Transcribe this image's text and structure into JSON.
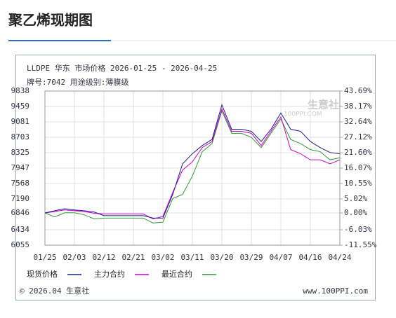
{
  "header": {
    "title": "聚乙烯现期图"
  },
  "chart_data": {
    "type": "line",
    "title": "LLDPE 华东 市场价格 2026-01-25 - 2026-04-25",
    "subtitle": "牌号:7042 用途级别:薄膜级",
    "categories": [
      "01/25",
      null,
      null,
      "02/03",
      null,
      null,
      "02/12",
      null,
      null,
      "02/21",
      null,
      null,
      "03/02",
      null,
      null,
      "03/11",
      null,
      null,
      "03/20",
      null,
      null,
      "03/29",
      null,
      null,
      "04/07",
      null,
      null,
      "04/16",
      null,
      null,
      "04/24"
    ],
    "series": [
      {
        "name": "现货价格",
        "color": "#1c1c8c",
        "values": [
          6846,
          6900,
          6950,
          6920,
          6900,
          6870,
          6780,
          6780,
          6780,
          6780,
          6780,
          6720,
          6720,
          7300,
          8050,
          8300,
          8500,
          8650,
          9500,
          8900,
          8900,
          8850,
          8600,
          8900,
          9300,
          8900,
          8850,
          8600,
          8450,
          8330,
          8300
        ]
      },
      {
        "name": "主力合约",
        "color": "#cc00cc",
        "values": [
          6846,
          6880,
          6920,
          6900,
          6880,
          6840,
          6820,
          6820,
          6820,
          6820,
          6820,
          6700,
          6760,
          7350,
          7900,
          8100,
          8450,
          8600,
          9400,
          8850,
          8850,
          8800,
          8500,
          8850,
          9200,
          8400,
          8300,
          8150,
          8150,
          8050,
          8150
        ]
      },
      {
        "name": "最近合约",
        "color": "#339933",
        "values": [
          6846,
          6750,
          6850,
          6850,
          6800,
          6700,
          6720,
          6720,
          6720,
          6720,
          6720,
          6600,
          6620,
          7200,
          7300,
          7750,
          8350,
          8550,
          9350,
          8800,
          8800,
          8700,
          8450,
          8800,
          9150,
          8650,
          8550,
          8400,
          8350,
          8150,
          8200
        ]
      }
    ],
    "ylim": [
      6055,
      9838
    ],
    "yticks": [
      9838,
      9459,
      9081,
      8703,
      8325,
      7947,
      7568,
      7190,
      6846,
      6434,
      6055
    ],
    "y2lim": [
      -11.55,
      43.69
    ],
    "y2ticks": [
      {
        "value": 43.69,
        "label": "43.69%"
      },
      {
        "value": 38.17,
        "label": "38.17%"
      },
      {
        "value": 32.64,
        "label": "32.64%"
      },
      {
        "value": 27.12,
        "label": "27.12%"
      },
      {
        "value": 21.6,
        "label": "21.60%"
      },
      {
        "value": 16.07,
        "label": "16.07%"
      },
      {
        "value": 10.55,
        "label": "10.55%"
      },
      {
        "value": 5.02,
        "label": "5.02%"
      },
      {
        "value": 0,
        "label": "0.00%"
      },
      {
        "value": -6.03,
        "label": "-6.03%"
      },
      {
        "value": -11.55,
        "label": "-11.55%"
      }
    ],
    "grid": true,
    "watermark": {
      "brand": "生意社",
      "site": "100PPI.COM"
    },
    "copyright": "© 2026.04 生意社",
    "source": "www.100PPI.com"
  }
}
